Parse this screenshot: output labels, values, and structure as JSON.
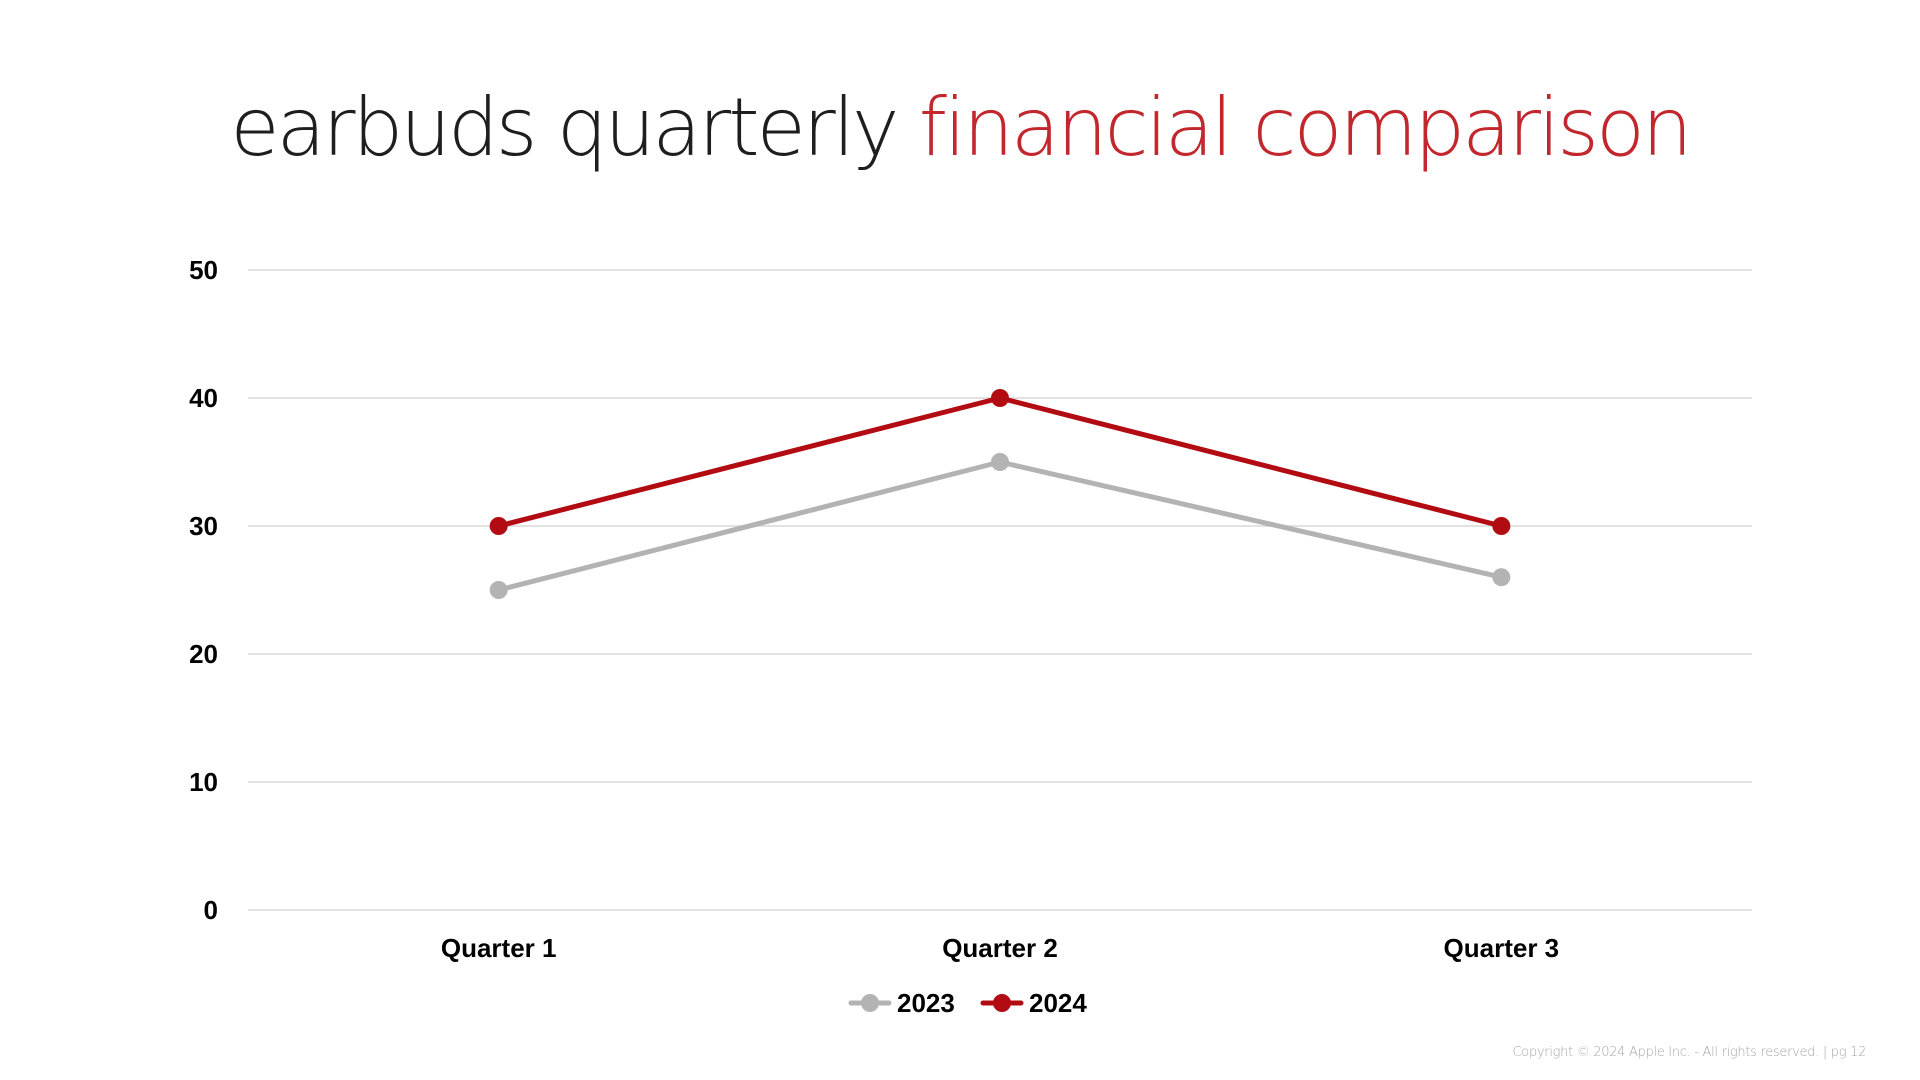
{
  "title": {
    "part1": "earbuds quarterly ",
    "part2": "financial comparison"
  },
  "colors": {
    "title_dark": "#1e1e1e",
    "title_accent": "#c1272d",
    "series_2023": "#b3b3b3",
    "series_2024": "#b20c12",
    "grid": "#d9d9d9"
  },
  "chart_data": {
    "type": "line",
    "categories": [
      "Quarter 1",
      "Quarter 2",
      "Quarter 3"
    ],
    "series": [
      {
        "name": "2023",
        "values": [
          25,
          35,
          26
        ],
        "color": "#b3b3b3"
      },
      {
        "name": "2024",
        "values": [
          30,
          40,
          30
        ],
        "color": "#b20c12"
      }
    ],
    "ylim": [
      0,
      50
    ],
    "yticks": [
      "0",
      "10",
      "20",
      "30",
      "40",
      "50"
    ],
    "grid": true,
    "legend": "bottom-center",
    "xlabel": "",
    "ylabel": ""
  },
  "footer": {
    "text": "Copyright © 2024 Apple Inc. - All rights reserved. | pg 12"
  }
}
